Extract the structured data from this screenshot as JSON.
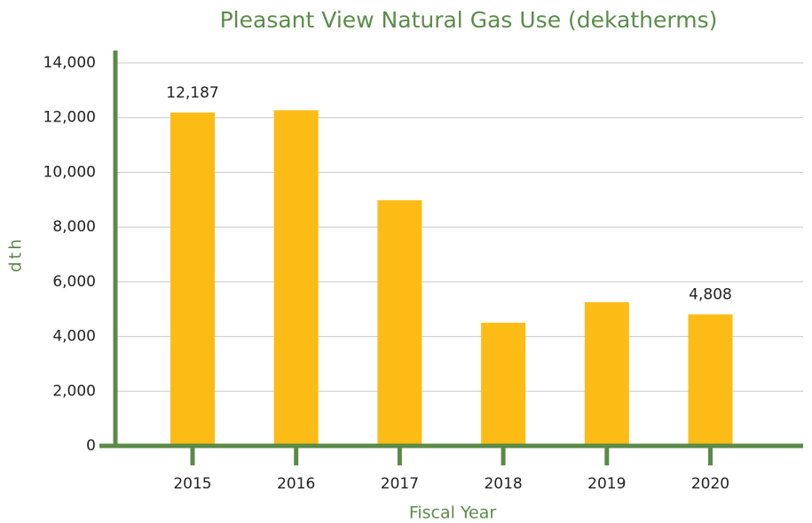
{
  "chart_data": {
    "type": "bar",
    "title": "Pleasant View Natural Gas Use (dekatherms)",
    "x_label": "Fiscal Year",
    "y_label": "dth",
    "categories": [
      "2015",
      "2016",
      "2017",
      "2018",
      "2019",
      "2020"
    ],
    "values": [
      12187,
      12270,
      8980,
      4500,
      5250,
      4808
    ],
    "value_labels": [
      "12,187",
      null,
      null,
      null,
      null,
      "4,808"
    ],
    "color": "#fdbb16",
    "axis_color": "#5a8a47",
    "ylim": [
      0,
      14000
    ],
    "yticks": [
      0,
      {
        "value": 2000,
        "label": "2,000"
      },
      {
        "value": 4000,
        "label": "4,000"
      },
      {
        "value": 6000,
        "label": "6,000"
      },
      {
        "value": 8000,
        "label": "8,000"
      },
      {
        "value": 10000,
        "label": "10,000"
      },
      {
        "value": 12000,
        "label": "12,000"
      },
      {
        "value": 14000,
        "label": "14,000"
      }
    ],
    "grid": true
  }
}
